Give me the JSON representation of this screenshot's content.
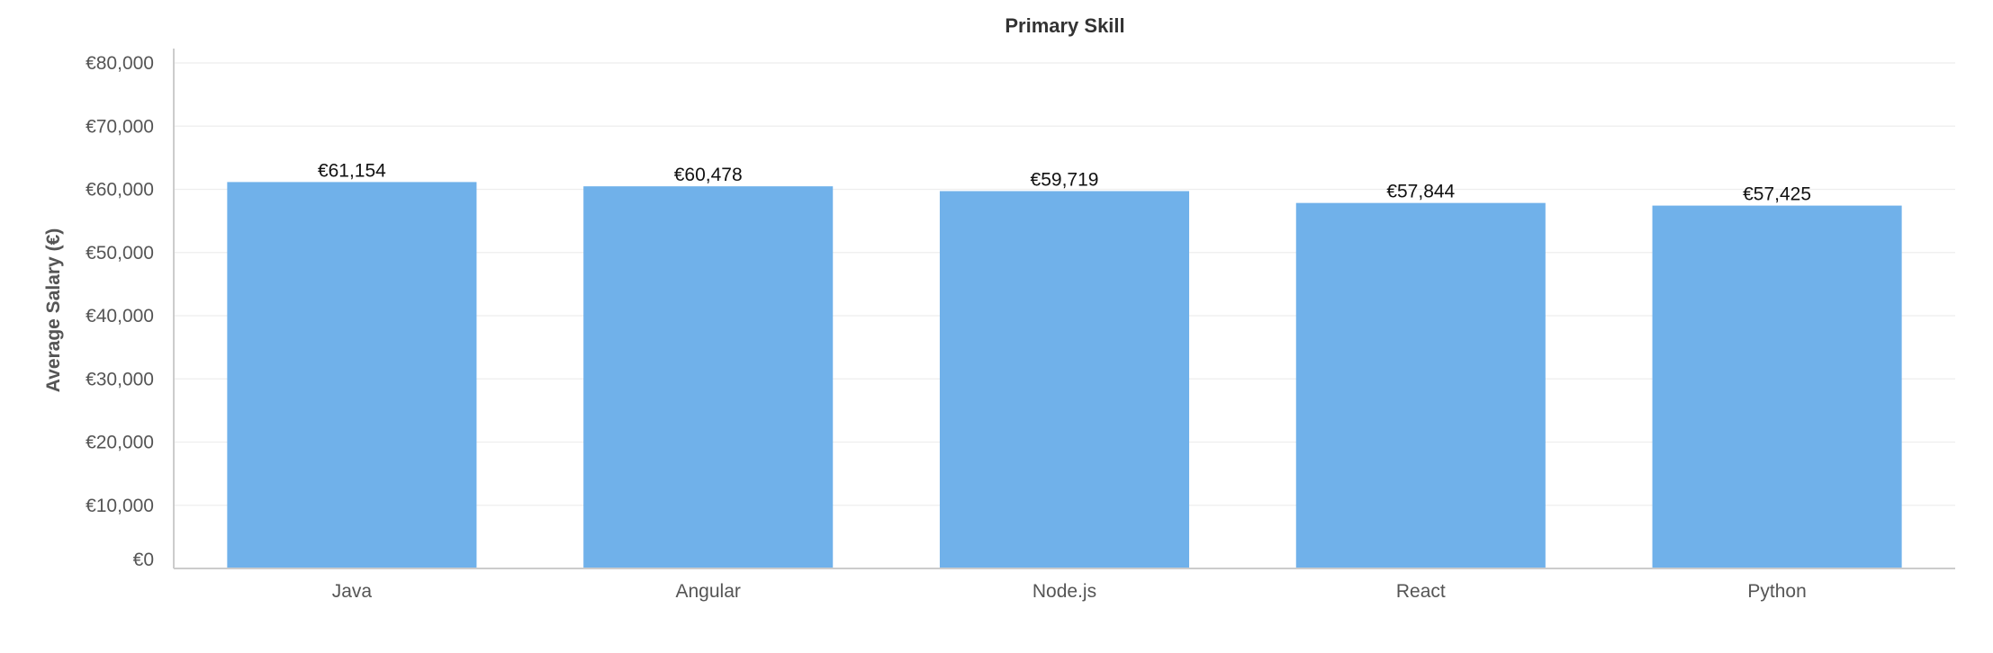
{
  "chart_data": {
    "type": "bar",
    "title": "Primary Skill",
    "xlabel": "",
    "ylabel": "Average Salary (€)",
    "categories": [
      "Java",
      "Angular",
      "Node.js",
      "React",
      "Python"
    ],
    "values": [
      61154,
      60478,
      59719,
      57844,
      57425
    ],
    "value_labels": [
      "€61,154",
      "€60,478",
      "€59,719",
      "€57,844",
      "€57,425"
    ],
    "ylim": [
      0,
      80000
    ],
    "yticks": [
      0,
      10000,
      20000,
      30000,
      40000,
      50000,
      60000,
      70000,
      80000
    ],
    "ytick_labels": [
      "€0",
      "€10,000",
      "€20,000",
      "€30,000",
      "€40,000",
      "€50,000",
      "€60,000",
      "€70,000",
      "€80,000"
    ],
    "grid": true,
    "legend": "none",
    "bar_color": "#70b1ea"
  }
}
